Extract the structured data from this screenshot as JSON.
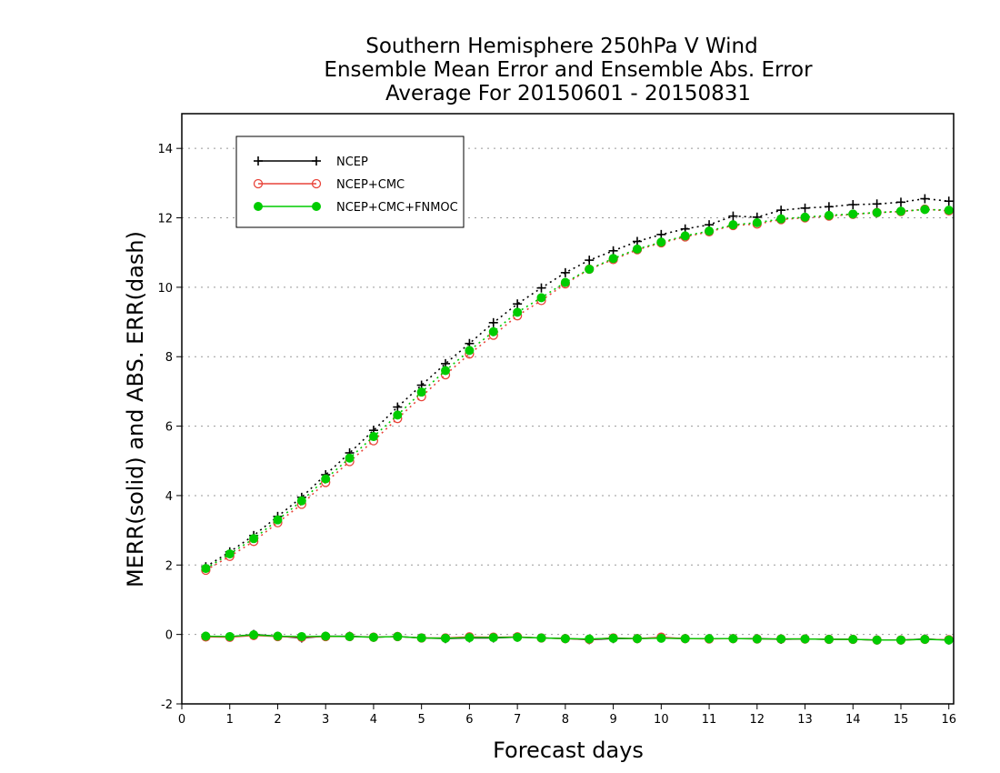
{
  "chart_data": {
    "type": "line",
    "title": [
      "Southern Hemisphere 250hPa V Wind",
      "Ensemble Mean Error and Ensemble Abs. Error",
      "Average For 20150601 - 20150831"
    ],
    "xlabel": "Forecast days",
    "ylabel": "MERR(solid) and ABS. ERR(dash)",
    "xlim": [
      0,
      16.1
    ],
    "ylim": [
      -2,
      15
    ],
    "xticks": [
      "0",
      "1",
      "2",
      "3",
      "4",
      "5",
      "6",
      "7",
      "8",
      "9",
      "10",
      "11",
      "12",
      "13",
      "14",
      "15",
      "16"
    ],
    "yticks": [
      "-2",
      "0",
      "2",
      "4",
      "6",
      "8",
      "10",
      "12",
      "14"
    ],
    "grid": "horizontal dotted",
    "legend_position": "top-left",
    "x": [
      0.5,
      1,
      1.5,
      2,
      2.5,
      3,
      3.5,
      4,
      4.5,
      5,
      5.5,
      6,
      6.5,
      7,
      7.5,
      8,
      8.5,
      9,
      9.5,
      10,
      10.5,
      11,
      11.5,
      12,
      12.5,
      13,
      13.5,
      14,
      14.5,
      15,
      15.5,
      16
    ],
    "series": [
      {
        "name": "NCEP",
        "color": "#000000",
        "marker": "plus",
        "abs_err": [
          1.95,
          2.38,
          2.85,
          3.4,
          3.95,
          4.6,
          5.23,
          5.88,
          6.55,
          7.18,
          7.8,
          8.38,
          8.98,
          9.52,
          9.98,
          10.42,
          10.78,
          11.05,
          11.32,
          11.52,
          11.68,
          11.8,
          12.05,
          12.02,
          12.22,
          12.28,
          12.32,
          12.38,
          12.4,
          12.45,
          12.55,
          12.48
        ],
        "mean_err": [
          -0.05,
          -0.07,
          0.0,
          -0.05,
          -0.1,
          -0.05,
          -0.05,
          -0.08,
          -0.06,
          -0.1,
          -0.12,
          -0.1,
          -0.1,
          -0.08,
          -0.1,
          -0.12,
          -0.15,
          -0.12,
          -0.12,
          -0.1,
          -0.12,
          -0.12,
          -0.12,
          -0.12,
          -0.14,
          -0.13,
          -0.14,
          -0.14,
          -0.16,
          -0.16,
          -0.13,
          -0.16
        ]
      },
      {
        "name": "NCEP+CMC",
        "color": "#e8443a",
        "marker": "open-circle",
        "abs_err": [
          1.85,
          2.25,
          2.68,
          3.22,
          3.75,
          4.38,
          4.98,
          5.58,
          6.22,
          6.85,
          7.48,
          8.08,
          8.62,
          9.18,
          9.62,
          10.1,
          10.52,
          10.8,
          11.08,
          11.28,
          11.45,
          11.6,
          11.78,
          11.82,
          11.95,
          12.0,
          12.05,
          12.1,
          12.15,
          12.18,
          12.25,
          12.2
        ],
        "mean_err": [
          -0.07,
          -0.08,
          -0.03,
          -0.06,
          -0.08,
          -0.06,
          -0.06,
          -0.08,
          -0.06,
          -0.1,
          -0.1,
          -0.07,
          -0.08,
          -0.07,
          -0.1,
          -0.12,
          -0.14,
          -0.1,
          -0.12,
          -0.08,
          -0.12,
          -0.13,
          -0.12,
          -0.13,
          -0.13,
          -0.13,
          -0.14,
          -0.14,
          -0.16,
          -0.16,
          -0.14,
          -0.15
        ]
      },
      {
        "name": "NCEP+CMC+FNMOC",
        "color": "#00cc00",
        "marker": "filled-circle",
        "abs_err": [
          1.9,
          2.32,
          2.76,
          3.3,
          3.85,
          4.48,
          5.08,
          5.7,
          6.32,
          6.98,
          7.6,
          8.18,
          8.72,
          9.28,
          9.7,
          10.14,
          10.52,
          10.83,
          11.1,
          11.3,
          11.48,
          11.62,
          11.8,
          11.86,
          11.97,
          12.02,
          12.07,
          12.11,
          12.15,
          12.19,
          12.24,
          12.22
        ],
        "mean_err": [
          -0.05,
          -0.06,
          -0.01,
          -0.05,
          -0.06,
          -0.05,
          -0.06,
          -0.08,
          -0.06,
          -0.1,
          -0.11,
          -0.09,
          -0.09,
          -0.08,
          -0.1,
          -0.12,
          -0.13,
          -0.11,
          -0.12,
          -0.11,
          -0.12,
          -0.12,
          -0.12,
          -0.13,
          -0.13,
          -0.13,
          -0.14,
          -0.14,
          -0.16,
          -0.16,
          -0.14,
          -0.16
        ]
      }
    ]
  }
}
